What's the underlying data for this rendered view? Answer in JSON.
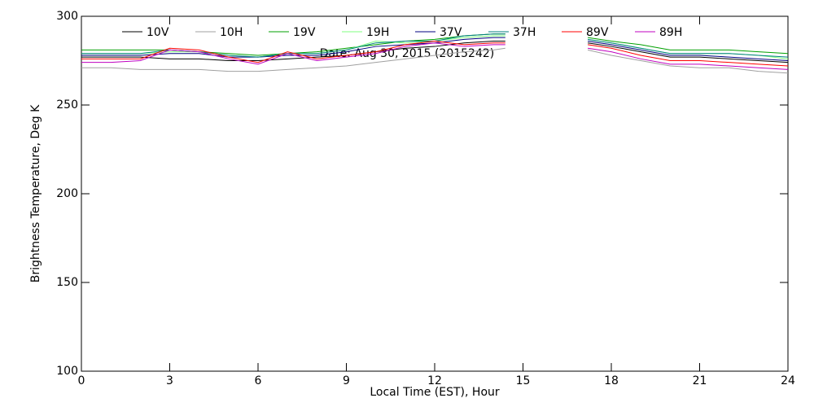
{
  "chart_data": {
    "type": "line",
    "title": "Date: Aug 30, 2015 (2015242)",
    "xlabel": "Local Time (EST), Hour",
    "ylabel": "Brightness Temperature, Deg K",
    "x": [
      0,
      1,
      2,
      3,
      4,
      5,
      6,
      7,
      8,
      9,
      10,
      11,
      12,
      13,
      14,
      14.4,
      15,
      16,
      17.2,
      18,
      19,
      20,
      21,
      22,
      23,
      24
    ],
    "series": [
      {
        "name": "10V",
        "color": "#000000",
        "values": [
          277,
          277,
          277,
          276,
          276,
          275,
          275,
          276,
          277,
          278,
          280,
          282,
          283,
          285,
          286,
          286,
          null,
          null,
          285,
          283,
          280,
          277,
          277,
          276,
          275,
          274
        ]
      },
      {
        "name": "10H",
        "color": "#a0a0a0",
        "values": [
          271,
          271,
          270,
          270,
          270,
          269,
          269,
          270,
          271,
          272,
          274,
          276,
          278,
          280,
          281,
          282,
          null,
          null,
          281,
          278,
          275,
          272,
          271,
          271,
          269,
          268
        ]
      },
      {
        "name": "19V",
        "color": "#00a000",
        "values": [
          281,
          281,
          281,
          281,
          280,
          279,
          278,
          279,
          280,
          282,
          284,
          286,
          287,
          289,
          290,
          290,
          null,
          null,
          288,
          286,
          284,
          281,
          281,
          281,
          280,
          279
        ]
      },
      {
        "name": "19H",
        "color": "#80ff80",
        "values": [
          279,
          279,
          279,
          280,
          280,
          278,
          277,
          279,
          279,
          281,
          286,
          285,
          286,
          288,
          289,
          289,
          null,
          null,
          287,
          285,
          282,
          279,
          279,
          279,
          278,
          276
        ]
      },
      {
        "name": "37V",
        "color": "#000080",
        "values": [
          278,
          278,
          278,
          279,
          279,
          277,
          277,
          278,
          278,
          280,
          283,
          284,
          285,
          287,
          288,
          288,
          null,
          null,
          286,
          284,
          281,
          278,
          278,
          277,
          276,
          275
        ]
      },
      {
        "name": "37H",
        "color": "#008080",
        "values": [
          279,
          279,
          279,
          281,
          280,
          278,
          277,
          279,
          279,
          281,
          285,
          286,
          286,
          289,
          290,
          290,
          null,
          null,
          287,
          285,
          282,
          279,
          279,
          279,
          278,
          277
        ]
      },
      {
        "name": "89V",
        "color": "#ff0000",
        "values": [
          276,
          276,
          276,
          282,
          281,
          277,
          274,
          280,
          276,
          278,
          280,
          284,
          286,
          284,
          285,
          285,
          null,
          null,
          284,
          282,
          278,
          275,
          275,
          274,
          273,
          272
        ]
      },
      {
        "name": "89H",
        "color": "#c000c0",
        "values": [
          274,
          274,
          275,
          281,
          280,
          276,
          273,
          279,
          275,
          277,
          279,
          283,
          285,
          283,
          284,
          284,
          null,
          null,
          282,
          280,
          276,
          273,
          273,
          272,
          271,
          270
        ]
      }
    ],
    "xlim": [
      0,
      24
    ],
    "xticks": [
      0,
      3,
      6,
      9,
      12,
      15,
      18,
      21,
      24
    ],
    "ylim": [
      100,
      300
    ],
    "yticks": [
      100,
      150,
      200,
      250,
      300
    ]
  }
}
